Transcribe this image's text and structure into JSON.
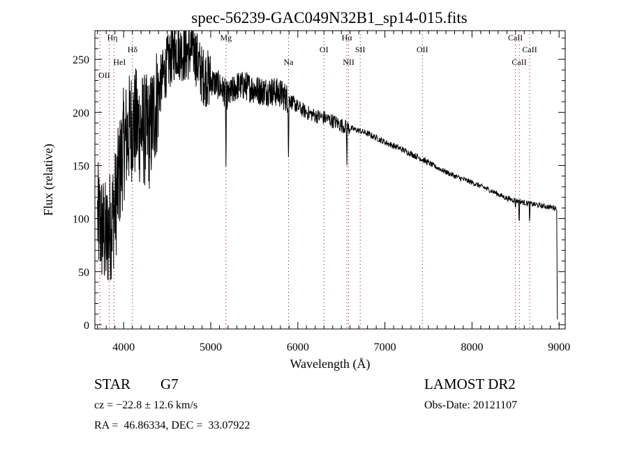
{
  "chart_data": {
    "type": "line",
    "title": "spec-56239-GAC049N32B1_sp14-015.fits",
    "xlabel": "Wavelength (Å)",
    "ylabel": "Flux (relative)",
    "xlim": [
      3670,
      9070
    ],
    "ylim": [
      -4,
      277
    ],
    "xticks": [
      4000,
      5000,
      6000,
      7000,
      8000,
      9000
    ],
    "xtick_labels": [
      "4000",
      "5000",
      "6000",
      "7000",
      "8000",
      "9000"
    ],
    "yticks": [
      0,
      50,
      100,
      150,
      200,
      250
    ],
    "ytick_labels": [
      "0",
      "50",
      "100",
      "150",
      "200",
      "250"
    ],
    "grid": false,
    "line_color": "#000000",
    "marker_line_color": "#8b0000",
    "continuum": {
      "wavelength": [
        3700,
        3800,
        3900,
        4000,
        4100,
        4200,
        4300,
        4400,
        4500,
        4600,
        4700,
        4800,
        4900,
        5000,
        5100,
        5200,
        5300,
        5400,
        5500,
        5600,
        5700,
        5800,
        5900,
        6000,
        6100,
        6200,
        6300,
        6400,
        6500,
        6600,
        6700,
        6800,
        7000,
        7200,
        7400,
        7600,
        7800,
        8000,
        8200,
        8400,
        8600,
        8800,
        8960
      ],
      "flux": [
        100,
        80,
        110,
        170,
        190,
        185,
        180,
        220,
        245,
        260,
        255,
        260,
        235,
        230,
        225,
        215,
        225,
        225,
        222,
        220,
        220,
        218,
        212,
        205,
        200,
        197,
        195,
        192,
        188,
        185,
        183,
        180,
        172,
        165,
        157,
        148,
        140,
        134,
        127,
        119,
        115,
        112,
        110
      ]
    },
    "absorption_features": [
      {
        "wavelength": 5175,
        "min_flux": 150
      },
      {
        "wavelength": 5893,
        "min_flux": 152
      },
      {
        "wavelength": 6563,
        "min_flux": 150
      },
      {
        "wavelength": 8498,
        "min_flux": 110
      },
      {
        "wavelength": 8542,
        "min_flux": 92
      },
      {
        "wavelength": 8662,
        "min_flux": 93
      }
    ],
    "end_drop": {
      "wavelength": 8980,
      "flux": 5
    },
    "line_markers": [
      {
        "label": "OII",
        "wavelength": 3727
      },
      {
        "label": "Hη",
        "wavelength": 3835
      },
      {
        "label": "HeI",
        "wavelength": 3889
      },
      {
        "label": "Hδ",
        "wavelength": 4102
      },
      {
        "label": "Mg",
        "wavelength": 5175
      },
      {
        "label": "Na",
        "wavelength": 5893
      },
      {
        "label": "OI",
        "wavelength": 6300
      },
      {
        "label": "Hα",
        "wavelength": 6563
      },
      {
        "label": "NII",
        "wavelength": 6583
      },
      {
        "label": "SII",
        "wavelength": 6716
      },
      {
        "label": "OII",
        "wavelength": 7430
      },
      {
        "label": "CaII",
        "wavelength": 8498
      },
      {
        "label": "CaII",
        "wavelength": 8542
      },
      {
        "label": "CaII",
        "wavelength": 8662
      }
    ]
  },
  "info": {
    "class": "STAR",
    "subclass": "G7",
    "redshift": "cz = −22.8 ± 12.6 km/s",
    "coords": "RA =  46.86334, DEC =  33.07922",
    "survey": "LAMOST DR2",
    "obs_date": "Obs-Date: 20121107"
  }
}
